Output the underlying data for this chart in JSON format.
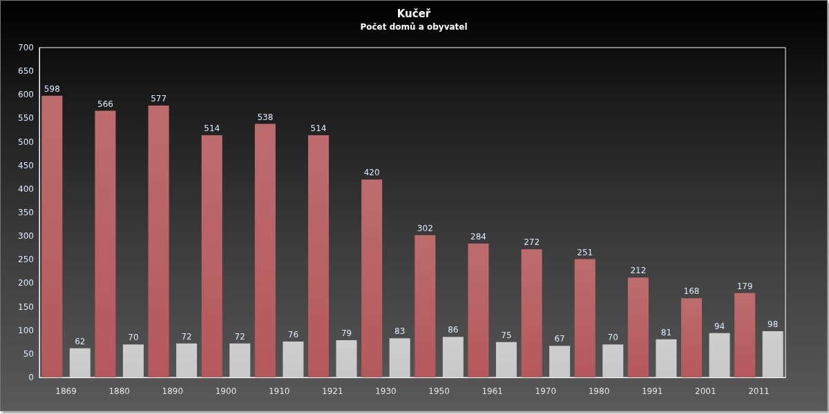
{
  "chart_data": {
    "type": "bar",
    "title": "Kučeř",
    "subtitle": "Počet domů a obyvatel",
    "categories": [
      "1869",
      "1880",
      "1890",
      "1900",
      "1910",
      "1921",
      "1930",
      "1950",
      "1961",
      "1970",
      "1980",
      "1991",
      "2001",
      "2011"
    ],
    "series": [
      {
        "color": "#b5585b",
        "values": [
          598,
          566,
          577,
          514,
          538,
          514,
          420,
          302,
          284,
          272,
          251,
          212,
          168,
          179
        ]
      },
      {
        "color": "#c8c8c8",
        "values": [
          62,
          70,
          72,
          72,
          76,
          79,
          83,
          86,
          75,
          67,
          70,
          81,
          94,
          98
        ]
      }
    ],
    "ylim": [
      0,
      700
    ],
    "yticks": [
      0,
      50,
      100,
      150,
      200,
      250,
      300,
      350,
      400,
      450,
      500,
      550,
      600,
      650,
      700
    ],
    "data_labels": true
  }
}
